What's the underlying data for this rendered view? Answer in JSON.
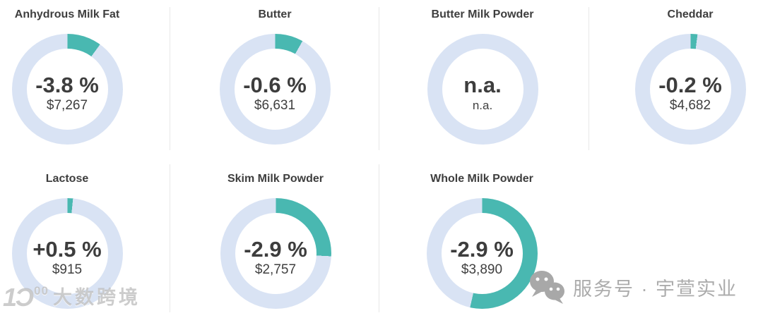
{
  "page": {
    "background": "#ffffff"
  },
  "colors": {
    "arc_teal": "#49b8b1",
    "ring_blue": "#d9e3f4",
    "text_dark": "#3d3d3d",
    "divider": "#e8e8e8",
    "watermark_gray": "#acacac"
  },
  "cards": [
    {
      "title": "Anhydrous Milk Fat",
      "percent": "-3.8 %",
      "price": "$7,267",
      "arc_pct_of_circle": 10
    },
    {
      "title": "Butter",
      "percent": "-0.6 %",
      "price": "$6,631",
      "arc_pct_of_circle": 8.2
    },
    {
      "title": "Butter Milk Powder",
      "percent": "n.a.",
      "price": "n.a.",
      "arc_pct_of_circle": 0
    },
    {
      "title": "Cheddar",
      "percent": "-0.2 %",
      "price": "$4,682",
      "arc_pct_of_circle": 2
    },
    {
      "title": "Lactose",
      "percent": "+0.5 %",
      "price": "$915",
      "arc_pct_of_circle": 1.6
    },
    {
      "title": "Skim Milk Powder",
      "percent": "-2.9 %",
      "price": "$2,757",
      "arc_pct_of_circle": 25.8
    },
    {
      "title": "Whole Milk Powder",
      "percent": "-2.9 %",
      "price": "$3,890",
      "arc_pct_of_circle": 53.5
    }
  ],
  "watermarks": {
    "left": {
      "logo_main": "1Ɔ",
      "logo_sup": "00",
      "text": "大数跨境"
    },
    "right": {
      "icon": "wechat-icon",
      "text": "服务号 · 宇萱实业"
    }
  },
  "chart_data": {
    "type": "donut-kpi-grid",
    "title": "Dairy commodity price changes (donut KPI tiles)",
    "legend_position": "none",
    "grid": {
      "rows": 2,
      "columns": 4,
      "filled_cells": 7
    },
    "items": [
      {
        "label": "Anhydrous Milk Fat",
        "change_pct": -3.8,
        "price_usd": 7267,
        "arc_pct_of_circle": 10
      },
      {
        "label": "Butter",
        "change_pct": -0.6,
        "price_usd": 6631,
        "arc_pct_of_circle": 8.2
      },
      {
        "label": "Butter Milk Powder",
        "change_pct": null,
        "price_usd": null,
        "arc_pct_of_circle": 0
      },
      {
        "label": "Cheddar",
        "change_pct": -0.2,
        "price_usd": 4682,
        "arc_pct_of_circle": 2
      },
      {
        "label": "Lactose",
        "change_pct": 0.5,
        "price_usd": 915,
        "arc_pct_of_circle": 1.6
      },
      {
        "label": "Skim Milk Powder",
        "change_pct": -2.9,
        "price_usd": 2757,
        "arc_pct_of_circle": 25.8
      },
      {
        "label": "Whole Milk Powder",
        "change_pct": -2.9,
        "price_usd": 3890,
        "arc_pct_of_circle": 53.5
      }
    ],
    "colors": {
      "arc": "#49b8b1",
      "ring": "#d9e3f4"
    }
  }
}
